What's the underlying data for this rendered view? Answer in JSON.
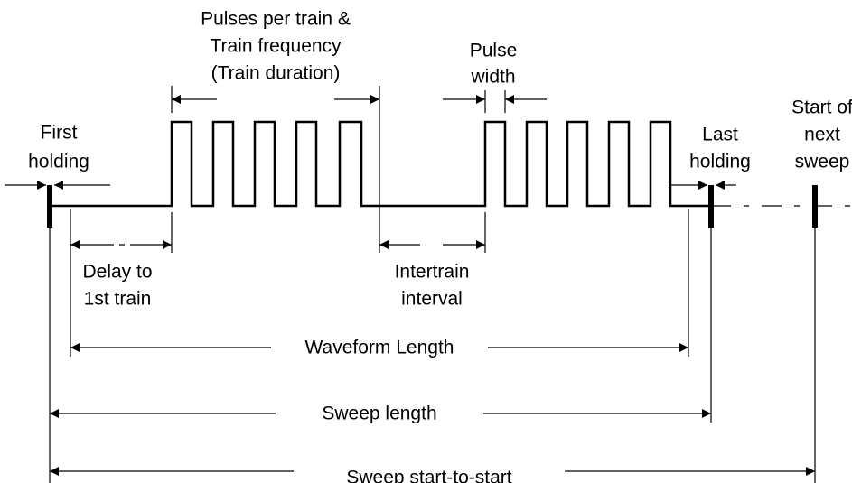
{
  "pulses_per_train": [
    "Pulses per train &",
    "Train frequency",
    "(Train duration)"
  ],
  "pulse_width": [
    "Pulse",
    "width"
  ],
  "start_of_next_sweep": [
    "Start of",
    "next",
    "sweep"
  ],
  "first_holding": [
    "First",
    "holding"
  ],
  "last_holding": [
    "Last",
    "holding"
  ],
  "delay_to_first_train": [
    "Delay to",
    "1st train"
  ],
  "intertrain_interval": [
    "Intertrain",
    "interval"
  ],
  "waveform_length": "Waveform Length",
  "sweep_length": "Sweep length",
  "sweep_start_to_start": "Sweep start-to-start"
}
